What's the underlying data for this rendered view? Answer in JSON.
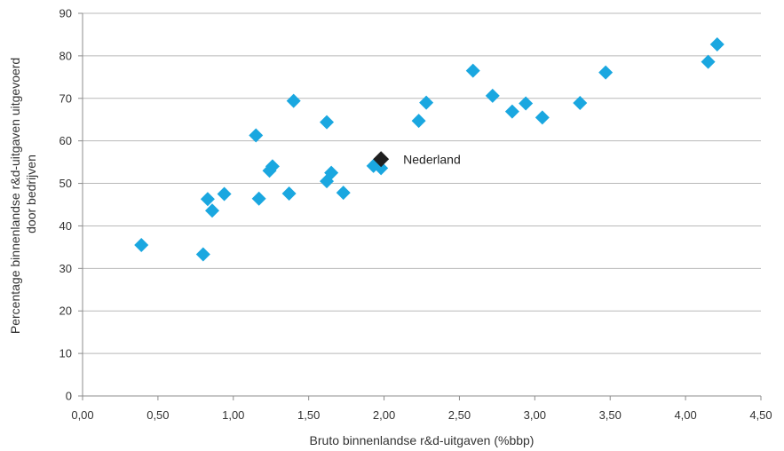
{
  "chart_data": {
    "type": "scatter",
    "title": "",
    "xlabel": "Bruto binnenlandse r&d-uitgaven (%bbp)",
    "ylabel_lines": [
      "Percentage binnenlandse r&d-uitgaven uitgevoerd",
      "door bedrijven"
    ],
    "xlim": [
      0,
      4.5
    ],
    "ylim": [
      0,
      90
    ],
    "x_ticks": [
      0,
      0.5,
      1.0,
      1.5,
      2.0,
      2.5,
      3.0,
      3.5,
      4.0,
      4.5
    ],
    "x_tick_labels": [
      "0,00",
      "0,50",
      "1,00",
      "1,50",
      "2,00",
      "2,50",
      "3,00",
      "3,50",
      "4,00",
      "4,50"
    ],
    "y_ticks": [
      0,
      10,
      20,
      30,
      40,
      50,
      60,
      70,
      80,
      90
    ],
    "y_tick_labels": [
      "0",
      "10",
      "20",
      "30",
      "40",
      "50",
      "60",
      "70",
      "80",
      "90"
    ],
    "grid": "horizontal",
    "legend": "none",
    "marker": "diamond",
    "colors": {
      "points": "#1aa7e0",
      "highlight": "#1f1f1f"
    },
    "series": [
      {
        "points": [
          {
            "x": 0.39,
            "y": 35.5
          },
          {
            "x": 0.8,
            "y": 33.3
          },
          {
            "x": 0.83,
            "y": 46.3
          },
          {
            "x": 0.86,
            "y": 43.6
          },
          {
            "x": 0.94,
            "y": 47.5
          },
          {
            "x": 1.15,
            "y": 61.3
          },
          {
            "x": 1.17,
            "y": 46.4
          },
          {
            "x": 1.24,
            "y": 53.0
          },
          {
            "x": 1.26,
            "y": 54.0
          },
          {
            "x": 1.37,
            "y": 47.6
          },
          {
            "x": 1.4,
            "y": 69.4
          },
          {
            "x": 1.62,
            "y": 50.5
          },
          {
            "x": 1.62,
            "y": 64.4
          },
          {
            "x": 1.65,
            "y": 52.5
          },
          {
            "x": 1.73,
            "y": 47.8
          },
          {
            "x": 1.93,
            "y": 54.1
          },
          {
            "x": 1.98,
            "y": 53.6
          },
          {
            "x": 2.23,
            "y": 64.7
          },
          {
            "x": 2.28,
            "y": 69.0
          },
          {
            "x": 2.59,
            "y": 76.5
          },
          {
            "x": 2.72,
            "y": 70.6
          },
          {
            "x": 2.85,
            "y": 66.9
          },
          {
            "x": 2.94,
            "y": 68.8
          },
          {
            "x": 3.05,
            "y": 65.5
          },
          {
            "x": 3.3,
            "y": 68.9
          },
          {
            "x": 3.47,
            "y": 76.1
          },
          {
            "x": 4.15,
            "y": 78.6
          },
          {
            "x": 4.21,
            "y": 82.7
          }
        ]
      }
    ],
    "highlight_point": {
      "x": 1.98,
      "y": 55.7,
      "label": "Nederland"
    }
  }
}
